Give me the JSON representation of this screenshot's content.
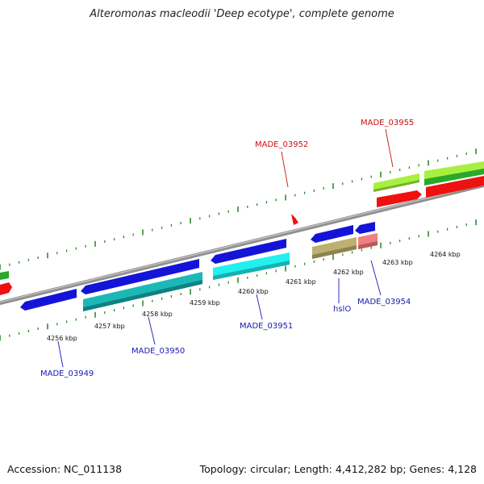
{
  "title": "Alteromonas macleodii 'Deep ecotype', complete genome",
  "footer": {
    "accession": "Accession: NC_011138",
    "summary": "Topology: circular; Length: 4,412,282 bp; Genes: 4,128"
  },
  "colors": {
    "backbone": "#909090",
    "ticks": "#2e8b2e",
    "blue": "#1414d8",
    "teal": "#1cb8b8",
    "cyan": "#22f0f0",
    "olive": "#bdb071",
    "pink": "#f08080",
    "red": "#ee1111",
    "lime": "#a8f040",
    "green": "#2aa82a",
    "label_blue": "#1a1ab0",
    "label_red": "#cc1111"
  },
  "scale_labels": [
    "4256 kbp",
    "4257 kbp",
    "4258 kbp",
    "4259 kbp",
    "4260 kbp",
    "4261 kbp",
    "4262 kbp",
    "4263 kbp",
    "4264 kbp"
  ],
  "gene_labels": {
    "made_03949": "MADE_03949",
    "made_03950": "MADE_03950",
    "made_03951": "MADE_03951",
    "hslo": "hslO",
    "made_03954": "MADE_03954",
    "made_03952": "MADE_03952",
    "made_03955": "MADE_03955"
  }
}
